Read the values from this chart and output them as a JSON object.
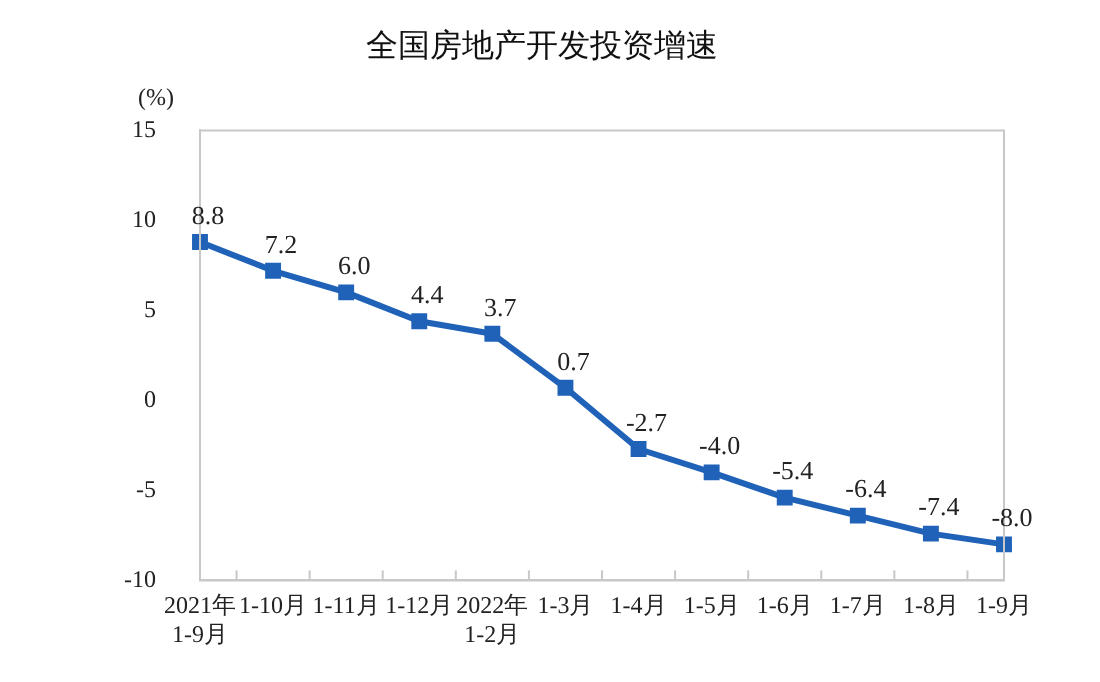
{
  "chart_data": {
    "type": "line",
    "title": "全国房地产开发投资增速",
    "ylabel": "(%)",
    "categories": [
      "2021年\n1-9月",
      "1-10月",
      "1-11月",
      "1-12月",
      "2022年\n1-2月",
      "1-3月",
      "1-4月",
      "1-5月",
      "1-6月",
      "1-7月",
      "1-8月",
      "1-9月"
    ],
    "series": [
      {
        "color": "#2062b8",
        "values": [
          8.8,
          7.2,
          6.0,
          4.4,
          3.7,
          0.7,
          -2.7,
          -4.0,
          -5.4,
          -6.4,
          -7.4,
          -8.0
        ],
        "value_labels": [
          "8.8",
          "7.2",
          "6.0",
          "4.4",
          "3.7",
          "0.7",
          "-2.7",
          "-4.0",
          "-5.4",
          "-6.4",
          "-7.4",
          "-8.0"
        ]
      }
    ],
    "ylim": [
      -10,
      15
    ],
    "yticks": [
      -10,
      -5,
      0,
      5,
      10,
      15
    ],
    "grid": false,
    "legend": false,
    "marker": "square",
    "line_style": "solid"
  }
}
